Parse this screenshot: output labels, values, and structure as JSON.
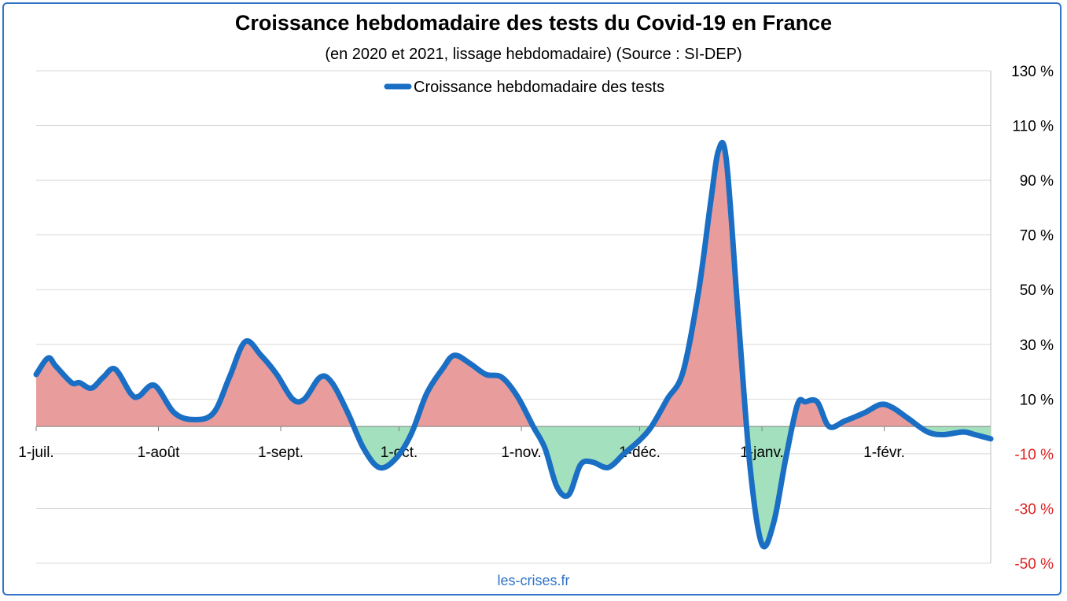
{
  "colors": {
    "line": "#1a6fc4",
    "positive_fill": "#e89c9c",
    "negative_fill": "#a3e0bd",
    "negative_tick": "#e02020",
    "grid": "#d9d9d9",
    "frame": "#2f74c8"
  },
  "chart_data": {
    "type": "area",
    "title": "Croissance hebdomadaire des tests du Covid-19 en France",
    "subtitle": "(en 2020 et 2021, lissage hebdomadaire) (Source : SI-DEP)",
    "legend_placement": "top-center",
    "grid": true,
    "yaxis_side": "right",
    "ylim": [
      -50,
      130
    ],
    "yticks": [
      130,
      110,
      90,
      70,
      50,
      30,
      10,
      -10,
      -30,
      -50
    ],
    "ytick_labels": [
      "130 %",
      "110 %",
      "90 %",
      "70 %",
      "50 %",
      "30 %",
      "10 %",
      "-10 %",
      "-30 %",
      "-50 %"
    ],
    "xlim": [
      "2020-07-01",
      "2021-02-28"
    ],
    "xticks": [
      "2020-07-01",
      "2020-08-01",
      "2020-09-01",
      "2020-10-01",
      "2020-11-01",
      "2020-12-01",
      "2021-01-01",
      "2021-02-01"
    ],
    "xtick_labels": [
      "1-juil.",
      "1-août",
      "1-sept.",
      "1-oct.",
      "1-nov.",
      "1-déc.",
      "1-janv.",
      "1-févr."
    ],
    "series": [
      {
        "name": "Croissance hebdomadaire des tests",
        "points": [
          [
            "2020-07-01",
            19
          ],
          [
            "2020-07-04",
            25
          ],
          [
            "2020-07-06",
            22
          ],
          [
            "2020-07-10",
            16
          ],
          [
            "2020-07-12",
            16
          ],
          [
            "2020-07-15",
            14
          ],
          [
            "2020-07-18",
            18
          ],
          [
            "2020-07-21",
            21
          ],
          [
            "2020-07-25",
            12
          ],
          [
            "2020-07-27",
            11
          ],
          [
            "2020-07-31",
            15
          ],
          [
            "2020-08-05",
            5
          ],
          [
            "2020-08-10",
            2.5
          ],
          [
            "2020-08-15",
            5
          ],
          [
            "2020-08-19",
            18
          ],
          [
            "2020-08-23",
            31
          ],
          [
            "2020-08-27",
            26
          ],
          [
            "2020-08-31",
            19
          ],
          [
            "2020-09-04",
            10
          ],
          [
            "2020-09-07",
            10
          ],
          [
            "2020-09-11",
            18
          ],
          [
            "2020-09-14",
            16
          ],
          [
            "2020-09-18",
            5
          ],
          [
            "2020-09-22",
            -8
          ],
          [
            "2020-09-26",
            -15
          ],
          [
            "2020-09-30",
            -12
          ],
          [
            "2020-10-04",
            -3
          ],
          [
            "2020-10-08",
            12
          ],
          [
            "2020-10-12",
            21
          ],
          [
            "2020-10-15",
            26
          ],
          [
            "2020-10-19",
            23
          ],
          [
            "2020-10-23",
            19
          ],
          [
            "2020-10-27",
            18
          ],
          [
            "2020-10-31",
            11
          ],
          [
            "2020-11-04",
            0
          ],
          [
            "2020-11-07",
            -8
          ],
          [
            "2020-11-10",
            -22
          ],
          [
            "2020-11-13",
            -25
          ],
          [
            "2020-11-16",
            -14
          ],
          [
            "2020-11-19",
            -13
          ],
          [
            "2020-11-23",
            -15
          ],
          [
            "2020-11-27",
            -10
          ],
          [
            "2020-12-01",
            -5
          ],
          [
            "2020-12-04",
            0
          ],
          [
            "2020-12-08",
            10
          ],
          [
            "2020-12-12",
            20
          ],
          [
            "2020-12-16",
            50
          ],
          [
            "2020-12-19",
            82
          ],
          [
            "2020-12-21",
            101
          ],
          [
            "2020-12-23",
            97
          ],
          [
            "2020-12-26",
            40
          ],
          [
            "2020-12-29",
            -15
          ],
          [
            "2021-01-01",
            -43
          ],
          [
            "2021-01-04",
            -35
          ],
          [
            "2021-01-07",
            -12
          ],
          [
            "2021-01-10",
            8
          ],
          [
            "2021-01-12",
            9
          ],
          [
            "2021-01-15",
            9
          ],
          [
            "2021-01-18",
            0
          ],
          [
            "2021-01-22",
            2
          ],
          [
            "2021-01-27",
            5
          ],
          [
            "2021-01-31",
            8
          ],
          [
            "2021-02-03",
            7
          ],
          [
            "2021-02-07",
            3
          ],
          [
            "2021-02-12",
            -2
          ],
          [
            "2021-02-16",
            -3
          ],
          [
            "2021-02-21",
            -2
          ],
          [
            "2021-02-24",
            -3
          ],
          [
            "2021-02-28",
            -4.5
          ]
        ]
      }
    ]
  },
  "footer": "les-crises.fr"
}
